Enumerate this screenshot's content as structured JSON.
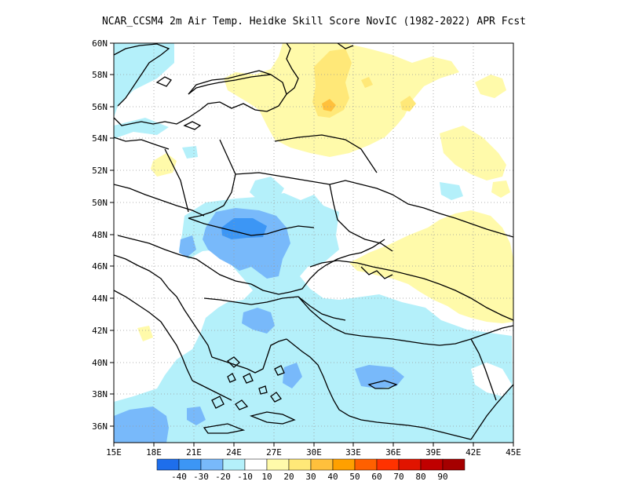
{
  "title": "NCAR_CCSM4  2m Air Temp. Heidke Skill Score NovIC (1982-2022) APR Fcst",
  "map": {
    "lon_ticks": [
      "15E",
      "18E",
      "21E",
      "24E",
      "27E",
      "30E",
      "33E",
      "36E",
      "39E",
      "42E",
      "45E"
    ],
    "lat_ticks": [
      "36N",
      "38N",
      "40N",
      "42N",
      "44N",
      "46N",
      "48N",
      "50N",
      "52N",
      "54N",
      "56N",
      "58N",
      "60N"
    ],
    "lon_range": [
      15,
      45
    ],
    "lat_range": [
      35,
      60
    ],
    "grid": "dotted"
  },
  "colorbar": {
    "colors": [
      "#1e6eeb",
      "#3c96f5",
      "#78b9fa",
      "#b4f0fa",
      "#ffffff",
      "#fffaaa",
      "#ffe878",
      "#ffc03c",
      "#ffa000",
      "#ff6000",
      "#ff3200",
      "#e11400",
      "#c00000",
      "#a50000"
    ],
    "labels": [
      "-40",
      "-30",
      "-20",
      "-10",
      "10",
      "20",
      "30",
      "40",
      "50",
      "60",
      "70",
      "80",
      "90"
    ]
  },
  "field_colors": {
    "neg10": "#b4f0fa",
    "neg20": "#78b9fa",
    "neg30": "#3c96f5",
    "pos10": "#fffaaa",
    "pos20": "#ffe878",
    "pos30": "#ffc03c"
  }
}
